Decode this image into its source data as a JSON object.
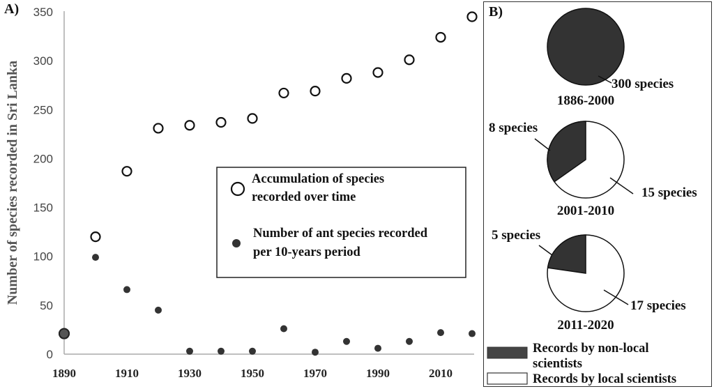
{
  "chart_data": [
    {
      "panel": "A)",
      "type": "scatter",
      "xlabel": "",
      "ylabel": "Number of species recorded in Sri Lanka",
      "xlim": [
        1890,
        2020
      ],
      "ylim": [
        0,
        350
      ],
      "x_ticks": [
        1890,
        1910,
        1930,
        1950,
        1970,
        1990,
        2010
      ],
      "y_ticks": [
        0,
        50,
        100,
        150,
        200,
        250,
        300,
        350
      ],
      "grid": false,
      "legend_position": "center-right",
      "series": [
        {
          "name": "Accumulation of species recorded over time",
          "marker": "open-circle",
          "x": [
            1890,
            1900,
            1910,
            1920,
            1930,
            1940,
            1950,
            1960,
            1970,
            1980,
            1990,
            2000,
            2010,
            2020
          ],
          "values": [
            21,
            120,
            187,
            231,
            234,
            237,
            241,
            267,
            269,
            282,
            288,
            301,
            324,
            345
          ]
        },
        {
          "name": "Number of ant species recorded per 10-years period",
          "marker": "filled-circle",
          "x": [
            1890,
            1900,
            1910,
            1920,
            1930,
            1940,
            1950,
            1960,
            1970,
            1980,
            1990,
            2000,
            2010,
            2020
          ],
          "values": [
            21,
            99,
            66,
            45,
            3,
            3,
            3,
            26,
            2,
            13,
            6,
            13,
            22,
            21
          ]
        }
      ],
      "legend": [
        {
          "lines": [
            "Accumulation of species",
            "recorded over time"
          ]
        },
        {
          "lines": [
            "Number of ant species recorded",
            "per 10-years period"
          ]
        }
      ]
    },
    {
      "panel": "B)",
      "type": "pie",
      "colors": {
        "non_local": "#333333",
        "local": "#ffffff"
      },
      "pies": [
        {
          "period": "1886-2000",
          "slices": [
            {
              "category": "non_local",
              "value": 300,
              "label": "300 species"
            }
          ]
        },
        {
          "period": "2001-2010",
          "slices": [
            {
              "category": "non_local",
              "value": 8,
              "label": "8 species"
            },
            {
              "category": "local",
              "value": 15,
              "label": "15 species"
            }
          ]
        },
        {
          "period": "2011-2020",
          "slices": [
            {
              "category": "non_local",
              "value": 5,
              "label": "5 species"
            },
            {
              "category": "local",
              "value": 17,
              "label": "17 species"
            }
          ]
        }
      ],
      "legend": [
        {
          "category": "non_local",
          "lines": [
            "Records by non-local",
            "scientists"
          ]
        },
        {
          "category": "local",
          "lines": [
            "Records by local scientists"
          ]
        }
      ]
    }
  ]
}
